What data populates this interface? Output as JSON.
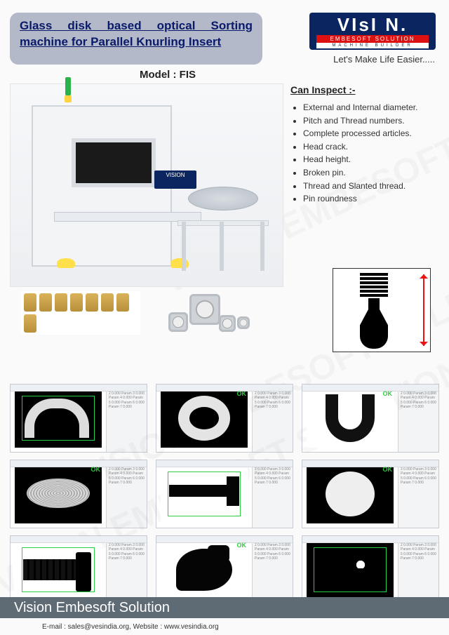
{
  "watermark_text": "VISION EMBESOFT SOLUTION",
  "header": {
    "title_line": "Glass disk based optical Sorting machine  for Parallel Knurling Insert",
    "logo_main": "VIsI   N.",
    "logo_sub": "EMBESOFT SOLUTION",
    "logo_sub2": "MACHINE BUILDER",
    "tagline": "Let's Make Life Easier....."
  },
  "model_label": "Model : FIS",
  "monitor_brand": "VISION",
  "inspect": {
    "title": "Can Inspect :-",
    "items": [
      "External and Internal diameter.",
      "Pitch and Thread numbers.",
      "Complete processed articles.",
      "Head crack.",
      "Head height.",
      "Broken pin.",
      "Thread and Slanted thread.",
      "Pin roundness"
    ]
  },
  "pin_arrow_color": "#e11",
  "screens_ok_label": "OK",
  "panel_filler": "Param 1 0.000 Param 2 0.000 Param 3 0.000 Param 4 0.000 Param 5 0.000 Param 6 0.000 Param 7 0.000",
  "footer": {
    "company": "Vision Embesoft Solution",
    "contact": "E-mail : sales@vesindia.org, Website : www.vesindia.org"
  },
  "colors": {
    "title_pill_bg": "#b3b9c8",
    "title_text": "#0a1a6a",
    "logo_bg": "#0a2560",
    "footer_bg": "#5e6a74",
    "ok_green": "#2ecc40"
  }
}
